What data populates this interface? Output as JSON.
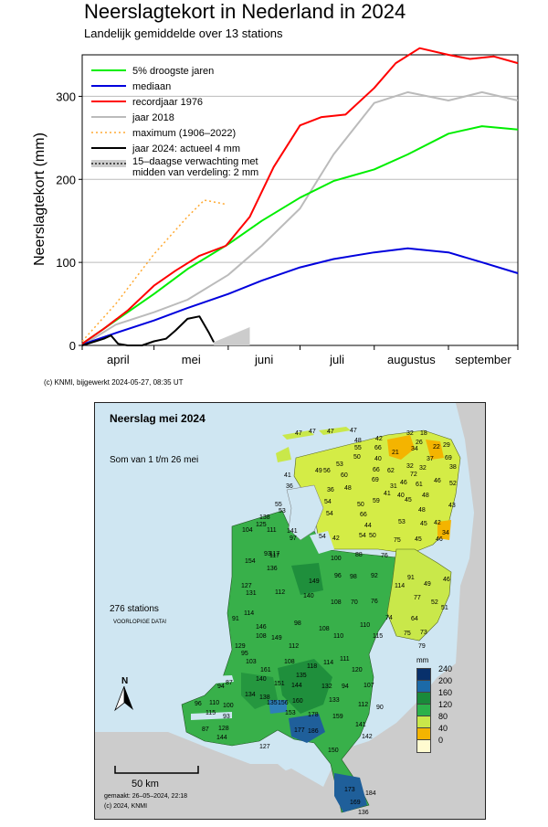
{
  "chart_data": {
    "type": "line",
    "title": "Neerslagtekort in Nederland in 2024",
    "subtitle": "Landelijk gemiddelde over 13 stations",
    "ylabel": "Neerslagtekort (mm)",
    "ylim": [
      0,
      350
    ],
    "yticks": [
      "0",
      "100",
      "200",
      "300"
    ],
    "xlim": [
      "2024-04-01",
      "2024-09-30"
    ],
    "month_labels": [
      "april",
      "mei",
      "juni",
      "juli",
      "augustus",
      "september"
    ],
    "grid": true,
    "legend_position": "top-left",
    "credit": "(c) KNMI, bijgewerkt 2024-05-27, 08:35 UT",
    "series": [
      {
        "name": "5% droogste jaren",
        "color": "#00ee00",
        "style": "solid",
        "x": [
          "2024-04-01",
          "2024-04-15",
          "2024-05-01",
          "2024-05-15",
          "2024-06-01",
          "2024-06-15",
          "2024-07-01",
          "2024-07-15",
          "2024-08-01",
          "2024-08-15",
          "2024-09-01",
          "2024-09-15",
          "2024-09-30"
        ],
        "values": [
          2,
          30,
          62,
          92,
          122,
          150,
          178,
          198,
          212,
          230,
          255,
          264,
          260
        ]
      },
      {
        "name": "mediaan",
        "color": "#0000dd",
        "style": "solid",
        "x": [
          "2024-04-01",
          "2024-04-15",
          "2024-05-01",
          "2024-05-15",
          "2024-06-01",
          "2024-06-15",
          "2024-07-01",
          "2024-07-15",
          "2024-08-01",
          "2024-08-15",
          "2024-09-01",
          "2024-09-15",
          "2024-09-30"
        ],
        "values": [
          1,
          15,
          30,
          45,
          62,
          78,
          94,
          104,
          112,
          117,
          112,
          100,
          87
        ]
      },
      {
        "name": "recordjaar 1976",
        "color": "#ff0000",
        "style": "solid",
        "x": [
          "2024-04-01",
          "2024-04-10",
          "2024-04-20",
          "2024-05-01",
          "2024-05-10",
          "2024-05-20",
          "2024-05-31",
          "2024-06-10",
          "2024-06-20",
          "2024-07-01",
          "2024-07-10",
          "2024-07-20",
          "2024-08-01",
          "2024-08-10",
          "2024-08-20",
          "2024-09-01",
          "2024-09-10",
          "2024-09-20",
          "2024-09-30"
        ],
        "values": [
          2,
          20,
          42,
          72,
          90,
          108,
          120,
          155,
          215,
          265,
          275,
          278,
          310,
          340,
          358,
          350,
          345,
          348,
          340
        ]
      },
      {
        "name": "jaar 2018",
        "color": "#bbbbbb",
        "style": "solid",
        "x": [
          "2024-04-01",
          "2024-04-15",
          "2024-05-01",
          "2024-05-15",
          "2024-06-01",
          "2024-06-15",
          "2024-07-01",
          "2024-07-15",
          "2024-08-01",
          "2024-08-15",
          "2024-09-01",
          "2024-09-15",
          "2024-09-30"
        ],
        "values": [
          0,
          25,
          40,
          55,
          85,
          120,
          165,
          230,
          292,
          305,
          295,
          305,
          295
        ]
      },
      {
        "name": "maximum (1906–2022)",
        "color": "#ffaa33",
        "style": "dotted",
        "x": [
          "2024-04-01",
          "2024-04-15",
          "2024-05-01",
          "2024-05-15",
          "2024-05-22",
          "2024-05-31"
        ],
        "values": [
          5,
          50,
          110,
          155,
          175,
          170
        ]
      },
      {
        "name": "jaar 2024: actueel 4 mm",
        "color": "#000000",
        "style": "solid",
        "x": [
          "2024-04-01",
          "2024-04-10",
          "2024-04-13",
          "2024-04-16",
          "2024-04-20",
          "2024-04-26",
          "2024-05-01",
          "2024-05-06",
          "2024-05-10",
          "2024-05-15",
          "2024-05-20",
          "2024-05-24",
          "2024-05-26"
        ],
        "values": [
          0,
          8,
          12,
          2,
          0,
          0,
          5,
          8,
          18,
          32,
          35,
          15,
          4
        ]
      },
      {
        "name": "15–daagse verwachting met midden van verdeling: 2 mm",
        "color": "#cccccc",
        "style": "band",
        "x": [
          "2024-05-26",
          "2024-06-10"
        ],
        "lower": [
          0,
          0
        ],
        "upper": [
          4,
          22
        ],
        "values": [
          4,
          2
        ]
      }
    ]
  },
  "map": {
    "title": "Neerslag mei 2024",
    "subtitle": "Som van 1 t/m 26 mei",
    "stations_text": "276 stations",
    "prelim_text": "VOORLOPIGE DATA!",
    "made_text": "gemaakt: 26–05–2024, 22:18",
    "copyright": "(c) 2024, KNMI",
    "scale_label": "50 km",
    "north_label": "N",
    "legend_unit": "mm",
    "legend": [
      {
        "label": "240",
        "color": "#08306b"
      },
      {
        "label": "200",
        "color": "#1c6aa8"
      },
      {
        "label": "160",
        "color": "#1a8a3a"
      },
      {
        "label": "120",
        "color": "#2cb14a"
      },
      {
        "label": "80",
        "color": "#c9e84a"
      },
      {
        "label": "40",
        "color": "#f4b400"
      },
      {
        "label": "0",
        "color": "#fffbd0"
      }
    ],
    "station_values": [
      {
        "v": "47",
        "x": 219,
        "y": 30
      },
      {
        "v": "47",
        "x": 234,
        "y": 28
      },
      {
        "v": "47",
        "x": 254,
        "y": 28
      },
      {
        "v": "47",
        "x": 279,
        "y": 27
      },
      {
        "v": "32",
        "x": 341,
        "y": 30
      },
      {
        "v": "18",
        "x": 356,
        "y": 30
      },
      {
        "v": "26",
        "x": 351,
        "y": 40
      },
      {
        "v": "42",
        "x": 307,
        "y": 36
      },
      {
        "v": "34",
        "x": 346,
        "y": 47
      },
      {
        "v": "22",
        "x": 370,
        "y": 45
      },
      {
        "v": "29",
        "x": 381,
        "y": 43
      },
      {
        "v": "55",
        "x": 284,
        "y": 46
      },
      {
        "v": "48",
        "x": 284,
        "y": 38
      },
      {
        "v": "66",
        "x": 306,
        "y": 46
      },
      {
        "v": "21",
        "x": 325,
        "y": 51
      },
      {
        "v": "37",
        "x": 363,
        "y": 58
      },
      {
        "v": "69",
        "x": 383,
        "y": 57
      },
      {
        "v": "38",
        "x": 388,
        "y": 67
      },
      {
        "v": "50",
        "x": 283,
        "y": 56
      },
      {
        "v": "40",
        "x": 306,
        "y": 58
      },
      {
        "v": "53",
        "x": 264,
        "y": 64
      },
      {
        "v": "32",
        "x": 341,
        "y": 66
      },
      {
        "v": "32",
        "x": 355,
        "y": 68
      },
      {
        "v": "49",
        "x": 241,
        "y": 71
      },
      {
        "v": "56",
        "x": 250,
        "y": 71
      },
      {
        "v": "66",
        "x": 304,
        "y": 70
      },
      {
        "v": "62",
        "x": 320,
        "y": 71
      },
      {
        "v": "72",
        "x": 345,
        "y": 75
      },
      {
        "v": "46",
        "x": 371,
        "y": 82
      },
      {
        "v": "60",
        "x": 269,
        "y": 76
      },
      {
        "v": "69",
        "x": 303,
        "y": 81
      },
      {
        "v": "46",
        "x": 334,
        "y": 84
      },
      {
        "v": "52",
        "x": 388,
        "y": 85
      },
      {
        "v": "48",
        "x": 273,
        "y": 90
      },
      {
        "v": "31",
        "x": 323,
        "y": 88
      },
      {
        "v": "61",
        "x": 351,
        "y": 86
      },
      {
        "v": "36",
        "x": 254,
        "y": 92
      },
      {
        "v": "41",
        "x": 316,
        "y": 96
      },
      {
        "v": "40",
        "x": 331,
        "y": 98
      },
      {
        "v": "48",
        "x": 358,
        "y": 98
      },
      {
        "v": "59",
        "x": 304,
        "y": 104
      },
      {
        "v": "45",
        "x": 339,
        "y": 103
      },
      {
        "v": "50",
        "x": 287,
        "y": 108
      },
      {
        "v": "54",
        "x": 251,
        "y": 105
      },
      {
        "v": "54",
        "x": 253,
        "y": 118
      },
      {
        "v": "66",
        "x": 290,
        "y": 119
      },
      {
        "v": "48",
        "x": 354,
        "y": 114
      },
      {
        "v": "43",
        "x": 387,
        "y": 109
      },
      {
        "v": "44",
        "x": 295,
        "y": 131
      },
      {
        "v": "53",
        "x": 332,
        "y": 127
      },
      {
        "v": "45",
        "x": 356,
        "y": 129
      },
      {
        "v": "42",
        "x": 371,
        "y": 128
      },
      {
        "v": "34",
        "x": 380,
        "y": 139
      },
      {
        "v": "54",
        "x": 245,
        "y": 143
      },
      {
        "v": "42",
        "x": 260,
        "y": 145
      },
      {
        "v": "54",
        "x": 289,
        "y": 142
      },
      {
        "v": "50",
        "x": 300,
        "y": 142
      },
      {
        "v": "75",
        "x": 327,
        "y": 147
      },
      {
        "v": "45",
        "x": 350,
        "y": 146
      },
      {
        "v": "46",
        "x": 373,
        "y": 146
      },
      {
        "v": "36",
        "x": 209,
        "y": 88
      },
      {
        "v": "41",
        "x": 207,
        "y": 76
      },
      {
        "v": "55",
        "x": 197,
        "y": 108
      },
      {
        "v": "53",
        "x": 201,
        "y": 115
      },
      {
        "v": "104",
        "x": 161,
        "y": 136
      },
      {
        "v": "138",
        "x": 180,
        "y": 122
      },
      {
        "v": "111",
        "x": 188,
        "y": 136
      },
      {
        "v": "125",
        "x": 176,
        "y": 130
      },
      {
        "v": "117",
        "x": 191,
        "y": 162
      },
      {
        "v": "93",
        "x": 185,
        "y": 162
      },
      {
        "v": "154",
        "x": 164,
        "y": 170
      },
      {
        "v": "97",
        "x": 213,
        "y": 145
      },
      {
        "v": "141",
        "x": 210,
        "y": 137
      },
      {
        "v": "100",
        "x": 258,
        "y": 167
      },
      {
        "v": "88",
        "x": 285,
        "y": 163
      },
      {
        "v": "76",
        "x": 313,
        "y": 164
      },
      {
        "v": "117",
        "x": 191,
        "y": 164
      },
      {
        "v": "127",
        "x": 160,
        "y": 197
      },
      {
        "v": "131",
        "x": 165,
        "y": 205
      },
      {
        "v": "136",
        "x": 188,
        "y": 178
      },
      {
        "v": "149",
        "x": 234,
        "y": 192
      },
      {
        "v": "96",
        "x": 262,
        "y": 186
      },
      {
        "v": "98",
        "x": 279,
        "y": 187
      },
      {
        "v": "92",
        "x": 302,
        "y": 186
      },
      {
        "v": "114",
        "x": 328,
        "y": 197
      },
      {
        "v": "91",
        "x": 342,
        "y": 188
      },
      {
        "v": "49",
        "x": 360,
        "y": 195
      },
      {
        "v": "46",
        "x": 381,
        "y": 190
      },
      {
        "v": "112",
        "x": 197,
        "y": 204
      },
      {
        "v": "140",
        "x": 228,
        "y": 208
      },
      {
        "v": "108",
        "x": 258,
        "y": 215
      },
      {
        "v": "70",
        "x": 280,
        "y": 215
      },
      {
        "v": "76",
        "x": 302,
        "y": 214
      },
      {
        "v": "77",
        "x": 349,
        "y": 210
      },
      {
        "v": "52",
        "x": 368,
        "y": 215
      },
      {
        "v": "51",
        "x": 379,
        "y": 221
      },
      {
        "v": "91",
        "x": 150,
        "y": 233
      },
      {
        "v": "114",
        "x": 163,
        "y": 227
      },
      {
        "v": "98",
        "x": 218,
        "y": 238
      },
      {
        "v": "108",
        "x": 245,
        "y": 244
      },
      {
        "v": "110",
        "x": 290,
        "y": 240
      },
      {
        "v": "74",
        "x": 318,
        "y": 232
      },
      {
        "v": "64",
        "x": 346,
        "y": 233
      },
      {
        "v": "75",
        "x": 338,
        "y": 249
      },
      {
        "v": "73",
        "x": 356,
        "y": 248
      },
      {
        "v": "146",
        "x": 176,
        "y": 242
      },
      {
        "v": "149",
        "x": 193,
        "y": 254
      },
      {
        "v": "110",
        "x": 261,
        "y": 252
      },
      {
        "v": "115",
        "x": 304,
        "y": 252
      },
      {
        "v": "108",
        "x": 176,
        "y": 252
      },
      {
        "v": "112",
        "x": 212,
        "y": 263
      },
      {
        "v": "129",
        "x": 153,
        "y": 263
      },
      {
        "v": "95",
        "x": 160,
        "y": 271
      },
      {
        "v": "103",
        "x": 165,
        "y": 280
      },
      {
        "v": "108",
        "x": 207,
        "y": 280
      },
      {
        "v": "118",
        "x": 232,
        "y": 285
      },
      {
        "v": "114",
        "x": 250,
        "y": 281
      },
      {
        "v": "111",
        "x": 268,
        "y": 277
      },
      {
        "v": "79",
        "x": 354,
        "y": 263
      },
      {
        "v": "94",
        "x": 134,
        "y": 307
      },
      {
        "v": "87",
        "x": 143,
        "y": 303
      },
      {
        "v": "140",
        "x": 176,
        "y": 299
      },
      {
        "v": "161",
        "x": 181,
        "y": 289
      },
      {
        "v": "135",
        "x": 220,
        "y": 295
      },
      {
        "v": "120",
        "x": 281,
        "y": 289
      },
      {
        "v": "107",
        "x": 294,
        "y": 306
      },
      {
        "v": "151",
        "x": 196,
        "y": 304
      },
      {
        "v": "144",
        "x": 215,
        "y": 306
      },
      {
        "v": "132",
        "x": 248,
        "y": 307
      },
      {
        "v": "94",
        "x": 270,
        "y": 307
      },
      {
        "v": "134",
        "x": 164,
        "y": 316
      },
      {
        "v": "138",
        "x": 180,
        "y": 319
      },
      {
        "v": "96",
        "x": 109,
        "y": 326
      },
      {
        "v": "110",
        "x": 125,
        "y": 325
      },
      {
        "v": "100",
        "x": 140,
        "y": 328
      },
      {
        "v": "135",
        "x": 188,
        "y": 325
      },
      {
        "v": "156",
        "x": 200,
        "y": 325
      },
      {
        "v": "160",
        "x": 216,
        "y": 323
      },
      {
        "v": "133",
        "x": 256,
        "y": 322
      },
      {
        "v": "112",
        "x": 288,
        "y": 327
      },
      {
        "v": "90",
        "x": 308,
        "y": 330
      },
      {
        "v": "115",
        "x": 121,
        "y": 336
      },
      {
        "v": "93",
        "x": 140,
        "y": 340
      },
      {
        "v": "153",
        "x": 208,
        "y": 336
      },
      {
        "v": "178",
        "x": 233,
        "y": 338
      },
      {
        "v": "159",
        "x": 260,
        "y": 340
      },
      {
        "v": "141",
        "x": 285,
        "y": 349
      },
      {
        "v": "142",
        "x": 292,
        "y": 362
      },
      {
        "v": "87",
        "x": 117,
        "y": 354
      },
      {
        "v": "128",
        "x": 135,
        "y": 353
      },
      {
        "v": "177",
        "x": 218,
        "y": 355
      },
      {
        "v": "186",
        "x": 233,
        "y": 356
      },
      {
        "v": "144",
        "x": 133,
        "y": 363
      },
      {
        "v": "150",
        "x": 255,
        "y": 377
      },
      {
        "v": "127",
        "x": 180,
        "y": 373
      },
      {
        "v": "173",
        "x": 273,
        "y": 420
      },
      {
        "v": "184",
        "x": 296,
        "y": 424
      },
      {
        "v": "169",
        "x": 279,
        "y": 434
      },
      {
        "v": "136",
        "x": 288,
        "y": 445
      }
    ]
  }
}
